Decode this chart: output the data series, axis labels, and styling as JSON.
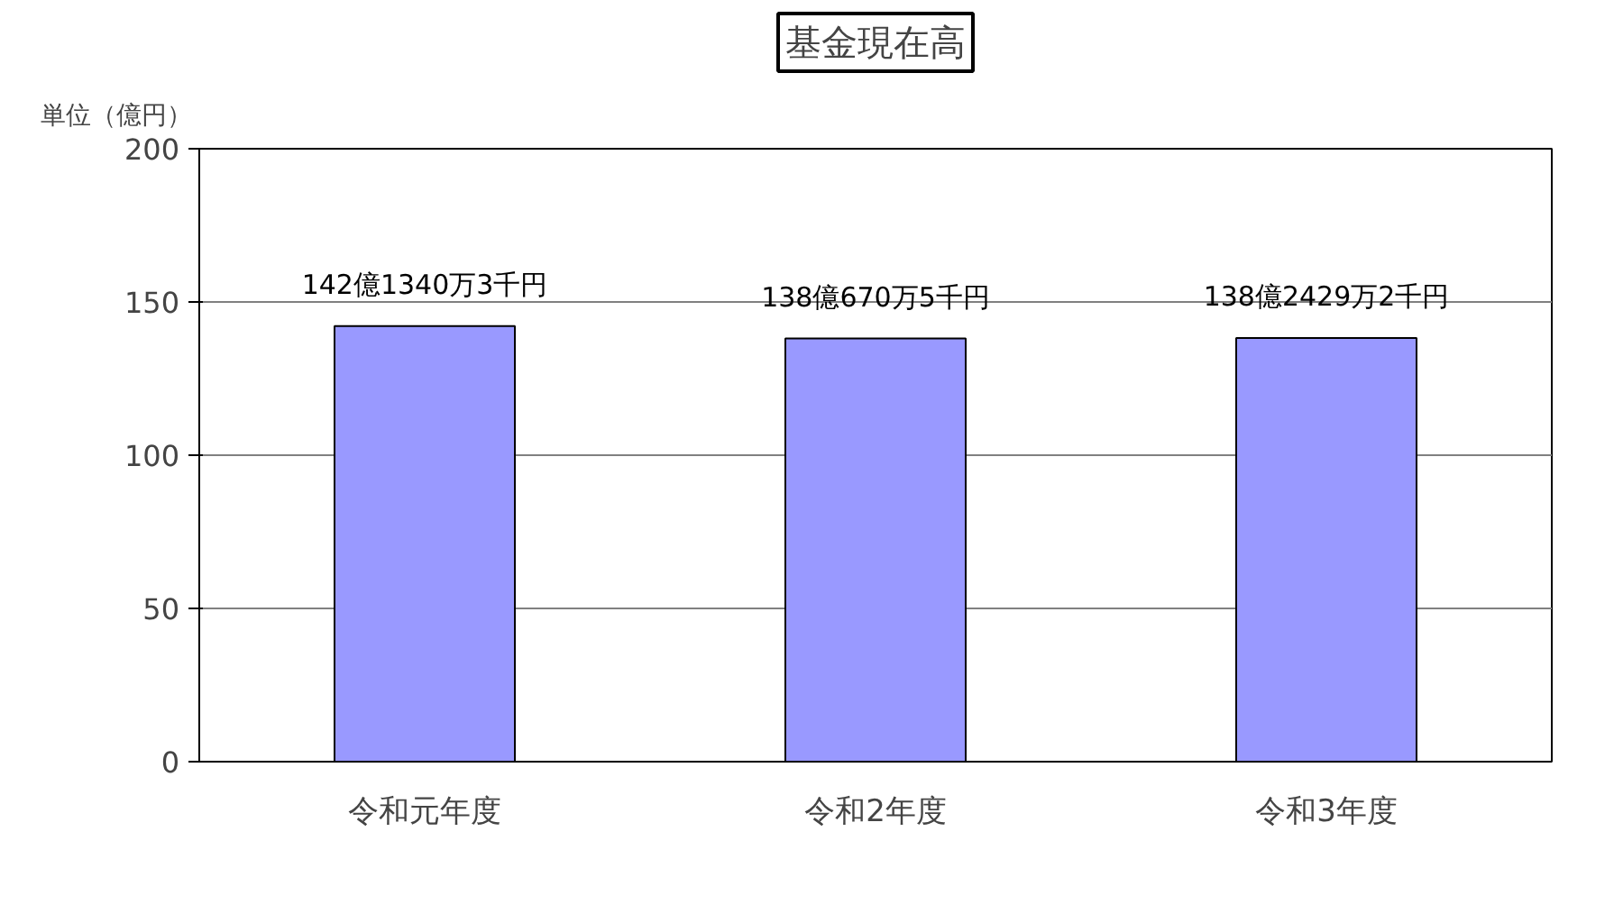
{
  "chart_data": {
    "type": "bar",
    "title": "基金現在高",
    "ylabel": "単位（億円）",
    "categories": [
      "令和元年度",
      "令和2年度",
      "令和3年度"
    ],
    "series": [
      {
        "color": "#9999ff",
        "values": [
          142.13403,
          138.06705,
          138.24292
        ]
      }
    ],
    "value_labels": [
      "142億1340万3千円",
      "138億670万5千円",
      "138億2429万2千円"
    ],
    "ylim": [
      0,
      200
    ],
    "yticks": [
      0,
      50,
      100,
      150,
      200
    ],
    "grid": "y"
  }
}
